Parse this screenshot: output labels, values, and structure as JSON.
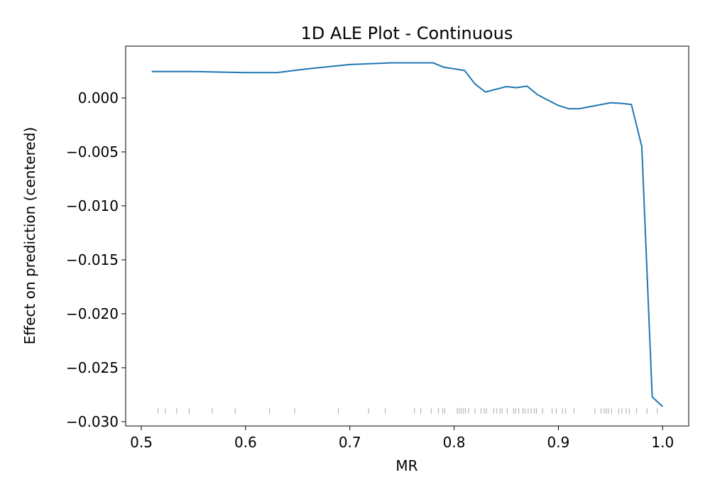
{
  "chart_data": {
    "type": "line",
    "title": "1D ALE Plot - Continuous",
    "xlabel": "MR",
    "ylabel": "Effect on prediction (centered)",
    "xlim": [
      0.485,
      1.025
    ],
    "ylim": [
      -0.0304,
      0.0048
    ],
    "xticks": [
      0.5,
      0.6,
      0.7,
      0.8,
      0.9,
      1.0
    ],
    "xtick_labels": [
      "0.5",
      "0.6",
      "0.7",
      "0.8",
      "0.9",
      "1.0"
    ],
    "yticks": [
      0.0,
      -0.005,
      -0.01,
      -0.015,
      -0.02,
      -0.025,
      -0.03
    ],
    "ytick_labels": [
      "0.000",
      "−0.005",
      "−0.010",
      "−0.015",
      "−0.020",
      "−0.025",
      "−0.030"
    ],
    "grid": false,
    "line_color": "#1f77b4",
    "rug_color": "#aaaaaa",
    "series": [
      {
        "x": [
          0.51,
          0.55,
          0.6,
          0.63,
          0.66,
          0.7,
          0.74,
          0.78,
          0.79,
          0.81,
          0.82,
          0.83,
          0.85,
          0.86,
          0.87,
          0.88,
          0.9,
          0.91,
          0.92,
          0.95,
          0.96,
          0.97,
          0.98,
          0.99,
          1.0
        ],
        "y": [
          0.00245,
          0.00245,
          0.00235,
          0.00235,
          0.0027,
          0.0031,
          0.00325,
          0.00325,
          0.00285,
          0.00255,
          0.0013,
          0.00055,
          0.00105,
          0.00095,
          0.0011,
          0.0003,
          -0.0007,
          -0.001,
          -0.001,
          -0.00045,
          -0.0005,
          -0.0006,
          -0.0045,
          -0.0277,
          -0.0286
        ]
      }
    ],
    "rug_x": [
      0.516,
      0.523,
      0.534,
      0.546,
      0.568,
      0.59,
      0.623,
      0.647,
      0.689,
      0.718,
      0.734,
      0.762,
      0.768,
      0.778,
      0.785,
      0.789,
      0.791,
      0.803,
      0.805,
      0.807,
      0.809,
      0.811,
      0.814,
      0.82,
      0.826,
      0.829,
      0.831,
      0.838,
      0.841,
      0.844,
      0.846,
      0.851,
      0.857,
      0.859,
      0.862,
      0.866,
      0.868,
      0.871,
      0.874,
      0.877,
      0.879,
      0.885,
      0.894,
      0.898,
      0.904,
      0.907,
      0.915,
      0.935,
      0.941,
      0.944,
      0.946,
      0.948,
      0.951,
      0.958,
      0.961,
      0.965,
      0.968,
      0.975,
      0.985,
      0.995
    ]
  }
}
